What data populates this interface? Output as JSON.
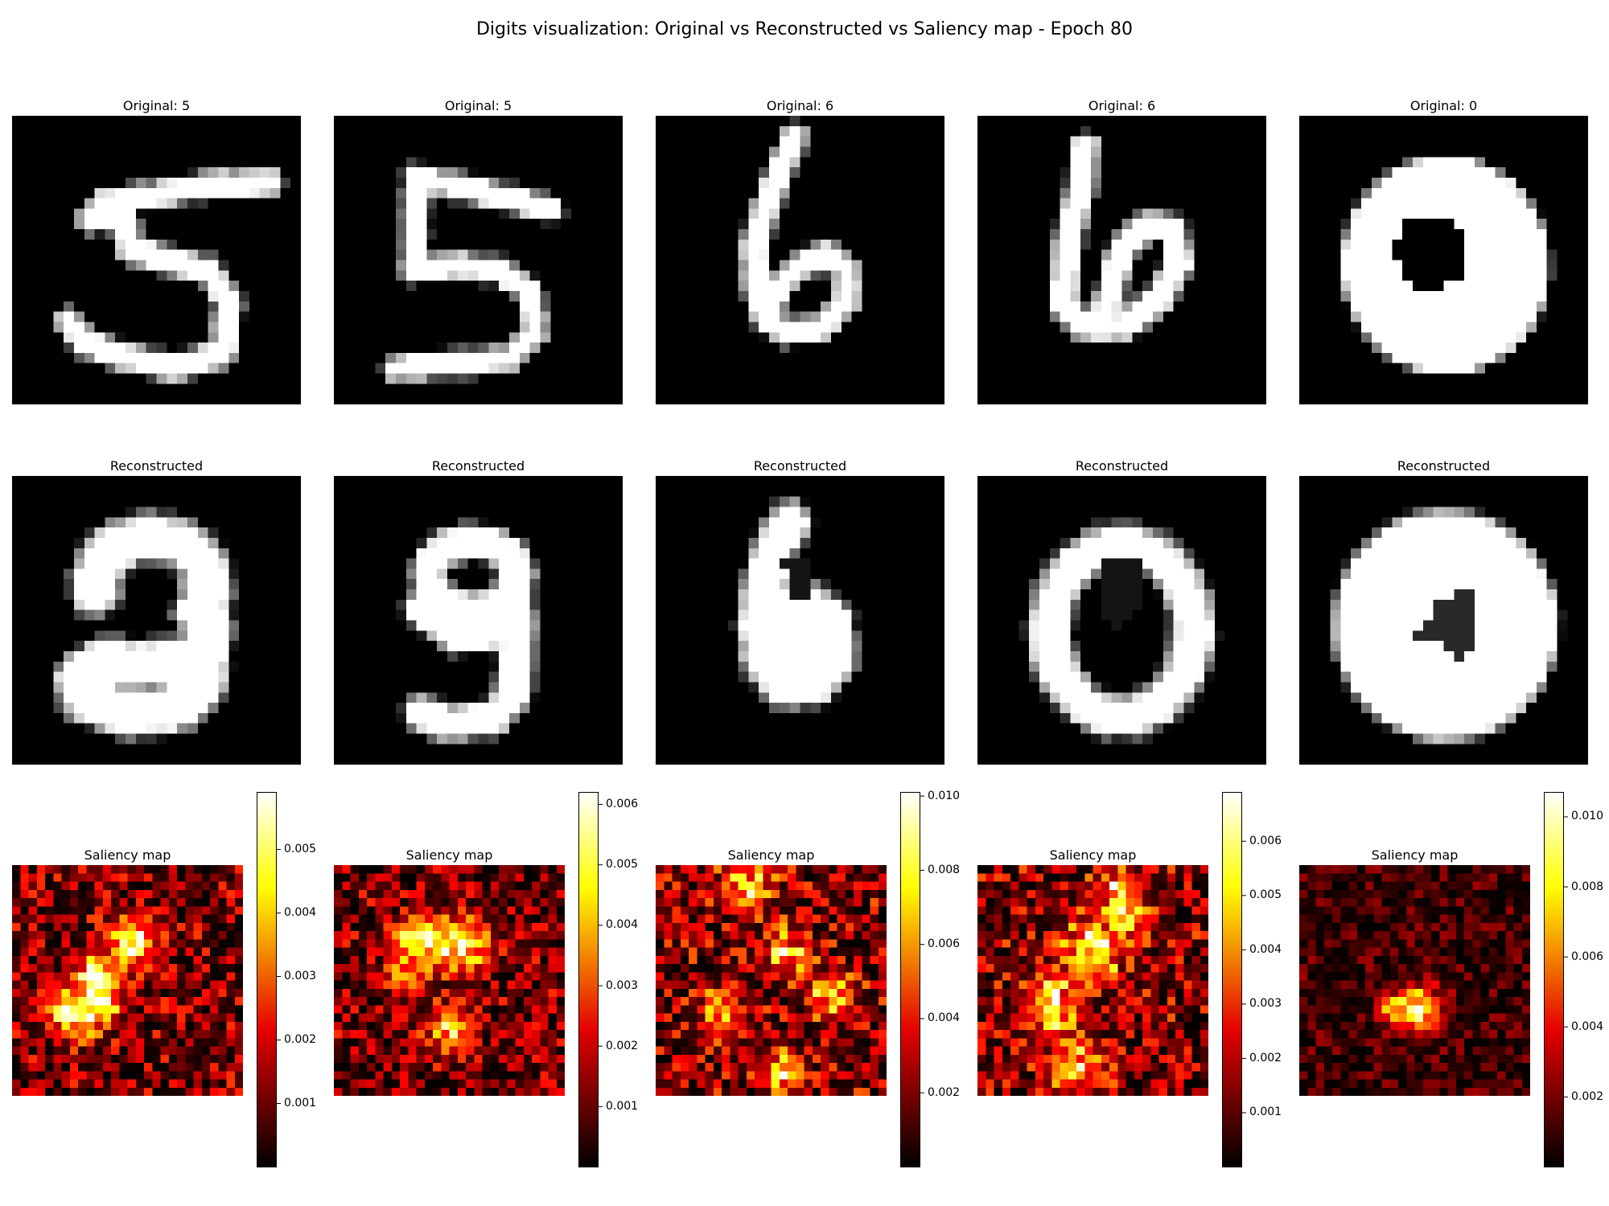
{
  "figure": {
    "suptitle": "Digits visualization: Original vs Reconstructed vs Saliency map - Epoch 80"
  },
  "colors": {
    "background": "#ffffff",
    "image_cmap": "gray",
    "saliency_cmap": "hot",
    "hot_stops": [
      "#000000",
      "#e50000",
      "#ffff00",
      "#ffffff"
    ]
  },
  "chart_data": [
    {
      "type": "heatmap",
      "title": "Original: 5",
      "digit": "5",
      "row": "original",
      "cmap": "gray",
      "grid": "28x28"
    },
    {
      "type": "heatmap",
      "title": "Original: 5",
      "digit": "5",
      "row": "original",
      "cmap": "gray",
      "grid": "28x28"
    },
    {
      "type": "heatmap",
      "title": "Original: 6",
      "digit": "6",
      "row": "original",
      "cmap": "gray",
      "grid": "28x28"
    },
    {
      "type": "heatmap",
      "title": "Original: 6",
      "digit": "6",
      "row": "original",
      "cmap": "gray",
      "grid": "28x28"
    },
    {
      "type": "heatmap",
      "title": "Original: 0",
      "digit": "0",
      "row": "original",
      "cmap": "gray",
      "grid": "28x28"
    },
    {
      "type": "heatmap",
      "title": "Reconstructed",
      "shape_like": "9",
      "row": "reconstructed",
      "cmap": "gray",
      "grid": "28x28"
    },
    {
      "type": "heatmap",
      "title": "Reconstructed",
      "shape_like": "9",
      "row": "reconstructed",
      "cmap": "gray",
      "grid": "28x28"
    },
    {
      "type": "heatmap",
      "title": "Reconstructed",
      "shape_like": "6",
      "row": "reconstructed",
      "cmap": "gray",
      "grid": "28x28"
    },
    {
      "type": "heatmap",
      "title": "Reconstructed",
      "shape_like": "0",
      "row": "reconstructed",
      "cmap": "gray",
      "grid": "28x28"
    },
    {
      "type": "heatmap",
      "title": "Reconstructed",
      "shape_like": "0",
      "row": "reconstructed",
      "cmap": "gray",
      "grid": "28x28"
    },
    {
      "type": "heatmap",
      "title": "Saliency map",
      "row": "saliency",
      "cmap": "hot",
      "grid": "28x28",
      "colorbar": {
        "vmin": 0,
        "vmax": 0.0059,
        "ticks": [
          "0.001",
          "0.002",
          "0.003",
          "0.004",
          "0.005"
        ]
      }
    },
    {
      "type": "heatmap",
      "title": "Saliency map",
      "row": "saliency",
      "cmap": "hot",
      "grid": "28x28",
      "colorbar": {
        "vmin": 0,
        "vmax": 0.0062,
        "ticks": [
          "0.001",
          "0.002",
          "0.003",
          "0.004",
          "0.005",
          "0.006"
        ]
      }
    },
    {
      "type": "heatmap",
      "title": "Saliency map",
      "row": "saliency",
      "cmap": "hot",
      "grid": "28x28",
      "colorbar": {
        "vmin": 0,
        "vmax": 0.0101,
        "ticks": [
          "0.002",
          "0.004",
          "0.006",
          "0.008",
          "0.010"
        ]
      }
    },
    {
      "type": "heatmap",
      "title": "Saliency map",
      "row": "saliency",
      "cmap": "hot",
      "grid": "28x28",
      "colorbar": {
        "vmin": 0,
        "vmax": 0.0069,
        "ticks": [
          "0.001",
          "0.002",
          "0.003",
          "0.004",
          "0.005",
          "0.006"
        ]
      }
    },
    {
      "type": "heatmap",
      "title": "Saliency map",
      "row": "saliency",
      "cmap": "hot",
      "grid": "28x28",
      "colorbar": {
        "vmin": 0,
        "vmax": 0.0107,
        "ticks": [
          "0.002",
          "0.004",
          "0.006",
          "0.008",
          "0.010"
        ]
      }
    }
  ]
}
